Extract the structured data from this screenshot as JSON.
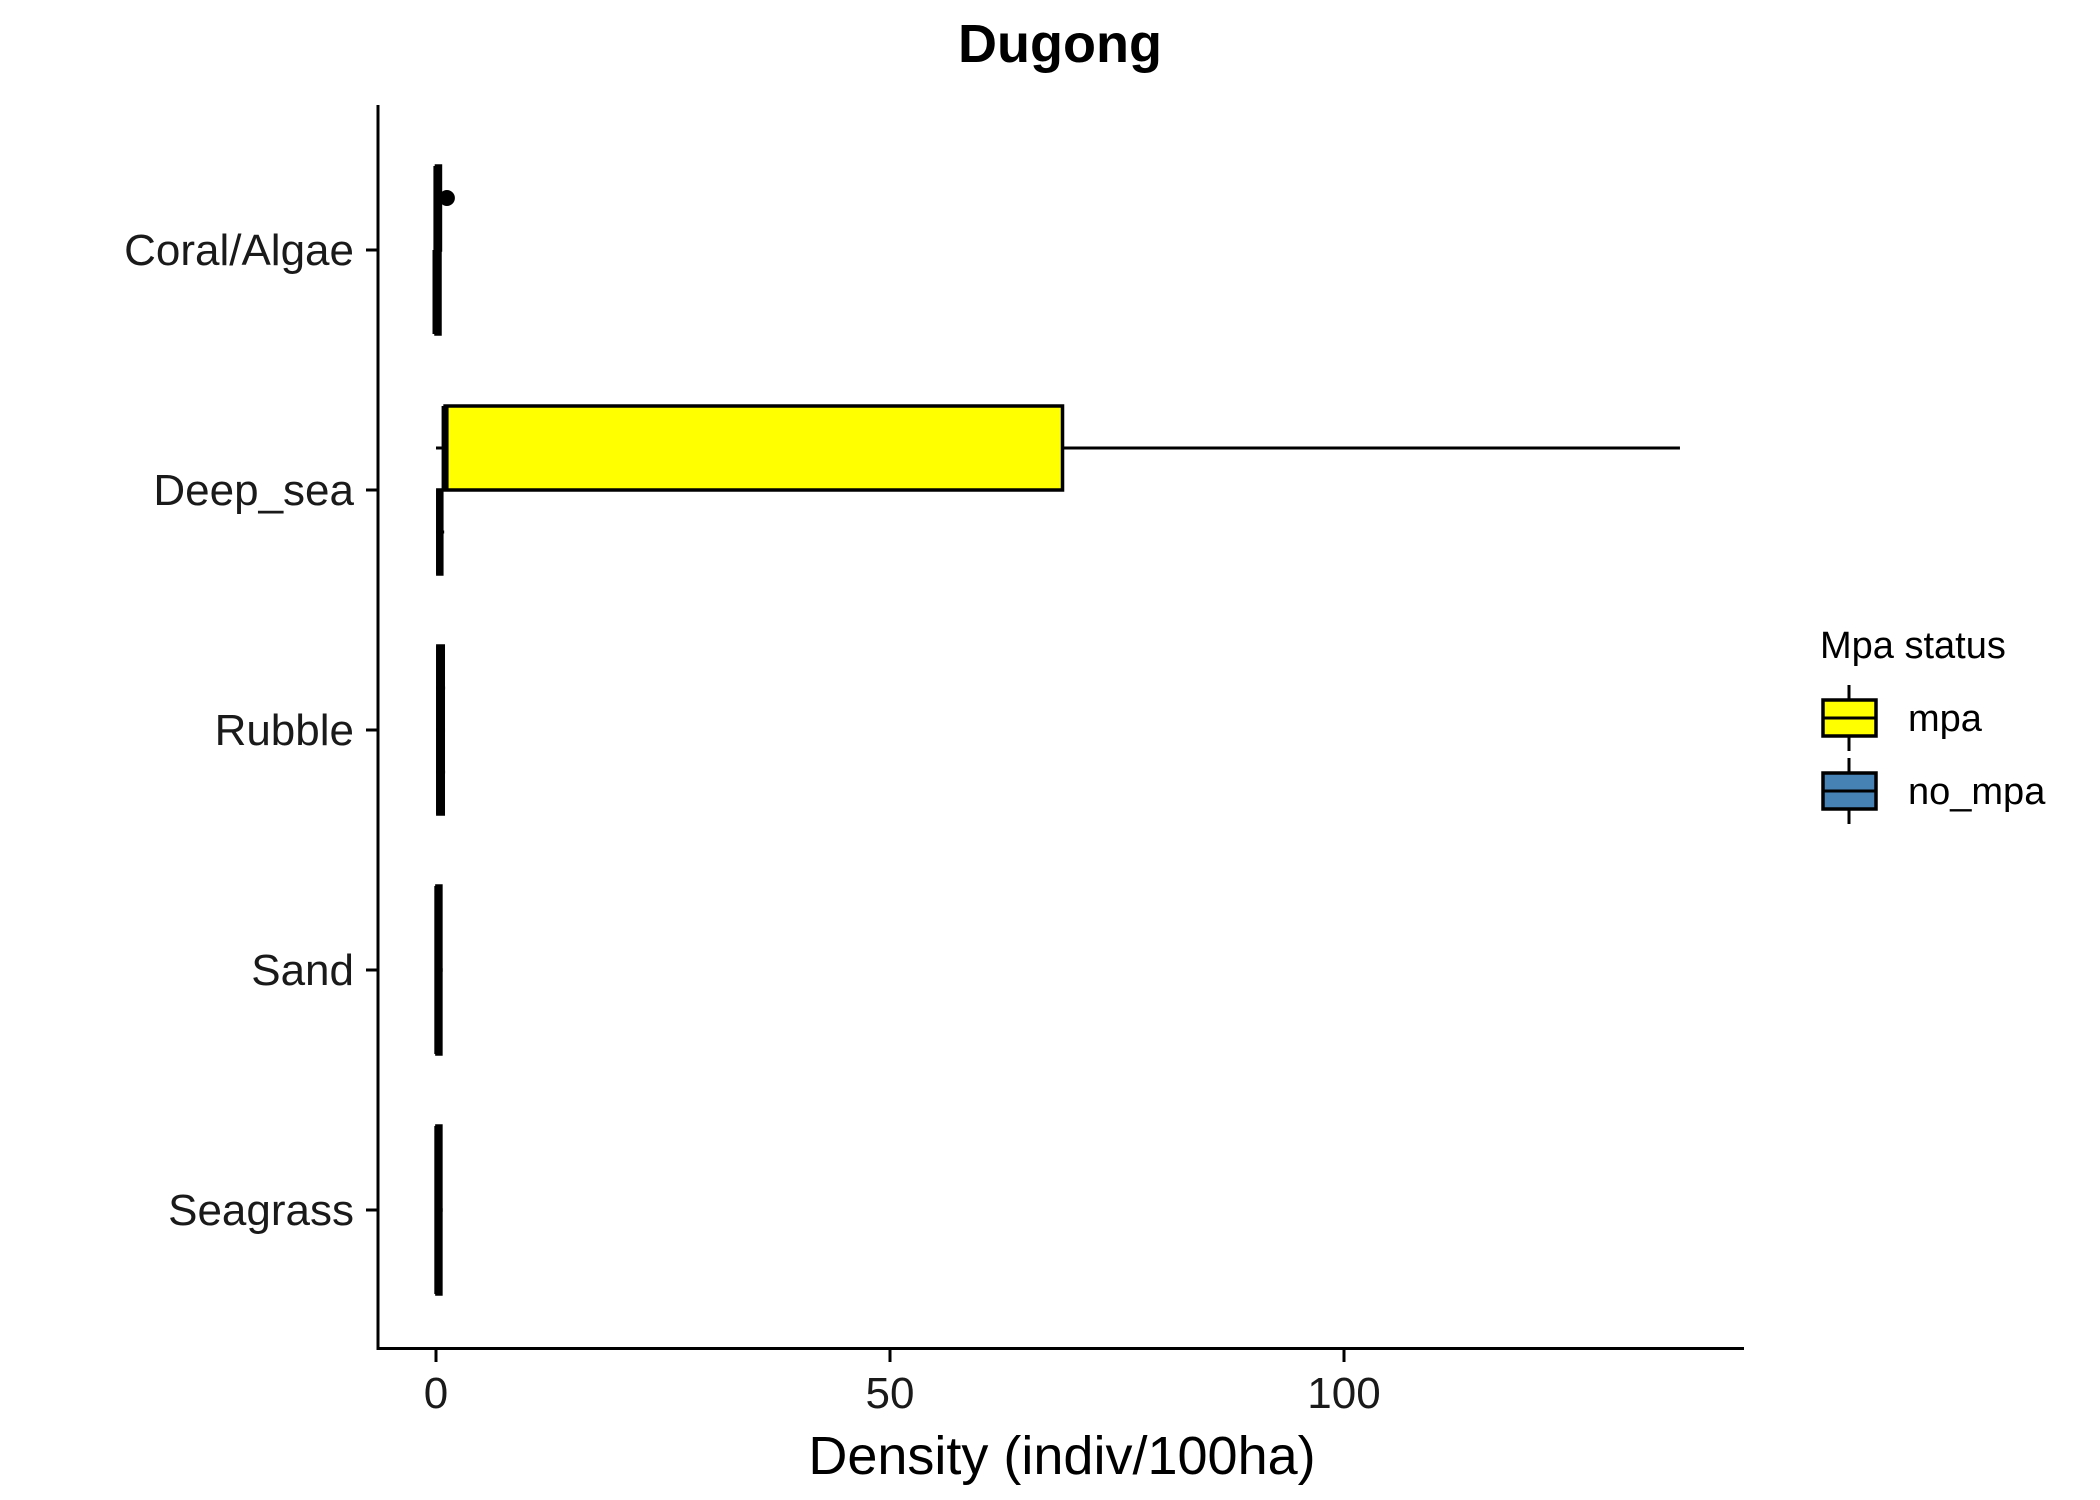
{
  "chart_data": {
    "type": "boxplot",
    "orientation": "horizontal",
    "title": "Dugong",
    "xlabel": "Density (indiv/100ha)",
    "ylabel": "",
    "xlim": [
      -3.2,
      143
    ],
    "x_ticks": [
      0,
      50,
      100
    ],
    "categories": [
      "Coral/Algae",
      "Deep_sea",
      "Rubble",
      "Sand",
      "Seagrass"
    ],
    "grid": false,
    "legend": {
      "title": "Mpa status",
      "position": "right",
      "entries": [
        {
          "name": "mpa",
          "color": "#FFFF00"
        },
        {
          "name": "no_mpa",
          "color": "#4682B4"
        }
      ]
    },
    "series": [
      {
        "name": "mpa",
        "color": "#FFFF00",
        "boxes": [
          {
            "category": "Coral/Algae",
            "min": 0.0,
            "q1": 0.05,
            "median": 0.1,
            "q3": 0.3,
            "max": 0.5,
            "outliers": [
              1.2
            ]
          },
          {
            "category": "Deep_sea",
            "min": 0.0,
            "q1": 1.0,
            "median": 1.0,
            "q3": 69.0,
            "max": 137.0,
            "outliers": []
          },
          {
            "category": "Rubble",
            "min": 0.0,
            "q1": 0.2,
            "median": 0.4,
            "q3": 0.8,
            "max": 1.0,
            "outliers": []
          },
          {
            "category": "Sand",
            "min": 0.0,
            "q1": 0.1,
            "median": 0.2,
            "q3": 0.5,
            "max": 0.7,
            "outliers": []
          },
          {
            "category": "Seagrass",
            "min": 0.0,
            "q1": 0.1,
            "median": 0.2,
            "q3": 0.4,
            "max": 0.6,
            "outliers": []
          }
        ]
      },
      {
        "name": "no_mpa",
        "color": "#4682B4",
        "boxes": [
          {
            "category": "Coral/Algae",
            "min": 0.0,
            "q1": 0.0,
            "median": 0.0,
            "q3": 0.2,
            "max": 0.4,
            "outliers": []
          },
          {
            "category": "Deep_sea",
            "min": 0.0,
            "q1": 0.2,
            "median": 0.4,
            "q3": 0.6,
            "max": 0.9,
            "outliers": []
          },
          {
            "category": "Rubble",
            "min": 0.0,
            "q1": 0.2,
            "median": 0.4,
            "q3": 0.8,
            "max": 1.0,
            "outliers": []
          },
          {
            "category": "Sand",
            "min": 0.0,
            "q1": 0.1,
            "median": 0.2,
            "q3": 0.5,
            "max": 0.7,
            "outliers": []
          },
          {
            "category": "Seagrass",
            "min": 0.0,
            "q1": 0.1,
            "median": 0.2,
            "q3": 0.4,
            "max": 0.6,
            "outliers": []
          }
        ]
      }
    ]
  }
}
